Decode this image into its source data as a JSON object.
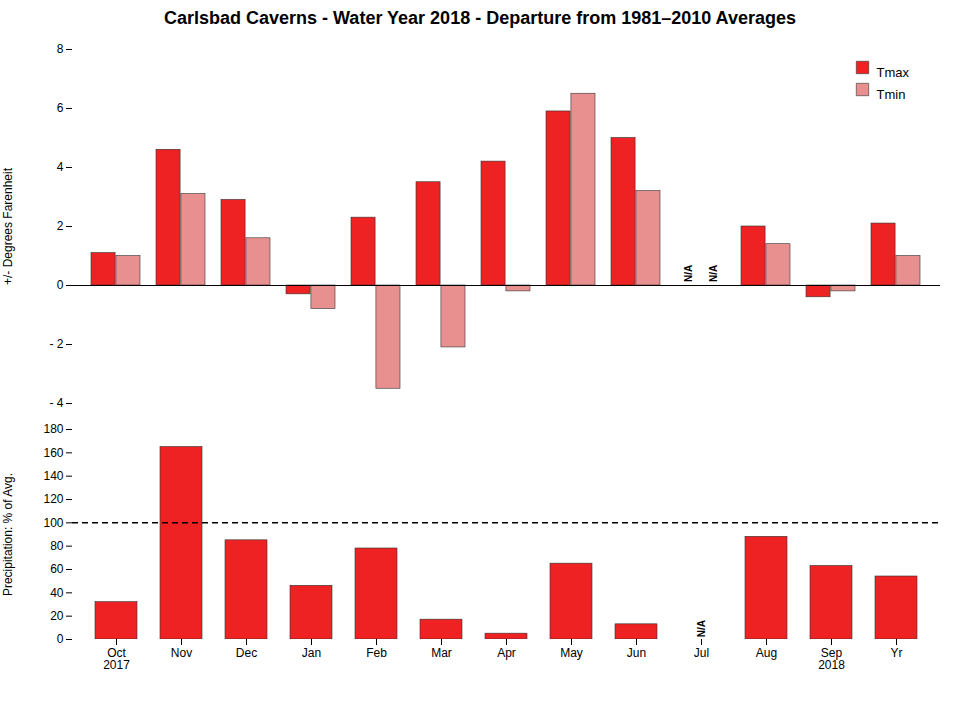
{
  "chart_data": [
    {
      "type": "bar",
      "title": "Carlsbad Caverns - Water Year 2018 - Departure from 1981–2010 Averages",
      "categories": [
        "Oct\n2017",
        "Nov",
        "Dec",
        "Jan",
        "Feb",
        "Mar",
        "Apr",
        "May",
        "Jun",
        "Jul",
        "Aug",
        "Sep\n2018",
        "Yr"
      ],
      "series": [
        {
          "name": "Tmax",
          "color": "#ee2222",
          "values": [
            1.1,
            4.6,
            2.9,
            -0.3,
            2.3,
            3.5,
            4.2,
            5.9,
            5.0,
            null,
            2.0,
            -0.4,
            2.1
          ]
        },
        {
          "name": "Tmin",
          "color": "#e89090",
          "values": [
            1.0,
            3.1,
            1.6,
            -0.8,
            -3.5,
            -2.1,
            -0.2,
            6.5,
            3.2,
            null,
            1.4,
            -0.2,
            1.0
          ]
        }
      ],
      "ylabel": "+/- Degrees Farenheit",
      "ylim": [
        -4,
        8
      ],
      "yticks": [
        {
          "value": -4,
          "label": "- 4"
        },
        {
          "value": -2,
          "label": "- 2"
        },
        0,
        2,
        4,
        6,
        8
      ],
      "legend": "upper right",
      "tick_labels": "y",
      "reference_lines": [
        {
          "y": 0,
          "line_style": "solid"
        }
      ],
      "annotations": [
        {
          "text": "N/A",
          "x": "Jul",
          "series": "Tmax",
          "y": 0.12
        },
        {
          "text": "N/A",
          "x": "Jul",
          "series": "Tmin",
          "y": 0.12
        }
      ]
    },
    {
      "type": "bar",
      "categories": [
        "Oct\n2017",
        "Nov",
        "Dec",
        "Jan",
        "Feb",
        "Mar",
        "Apr",
        "May",
        "Jun",
        "Jul",
        "Aug",
        "Sep\n2018",
        "Yr"
      ],
      "values": [
        32,
        165,
        85,
        46,
        78,
        17,
        5,
        65,
        13,
        null,
        88,
        63,
        54
      ],
      "color": "#ee2222",
      "ylabel": "Precipitation: % of Avg.",
      "ylim": [
        0,
        180
      ],
      "yticks": [
        0,
        20,
        40,
        60,
        80,
        100,
        120,
        140,
        160,
        180
      ],
      "reference_lines": [
        {
          "y": 100,
          "line_style": "dashed"
        }
      ],
      "annotations": [
        {
          "text": "N/A",
          "x": "Jul",
          "y": 2
        }
      ]
    }
  ]
}
